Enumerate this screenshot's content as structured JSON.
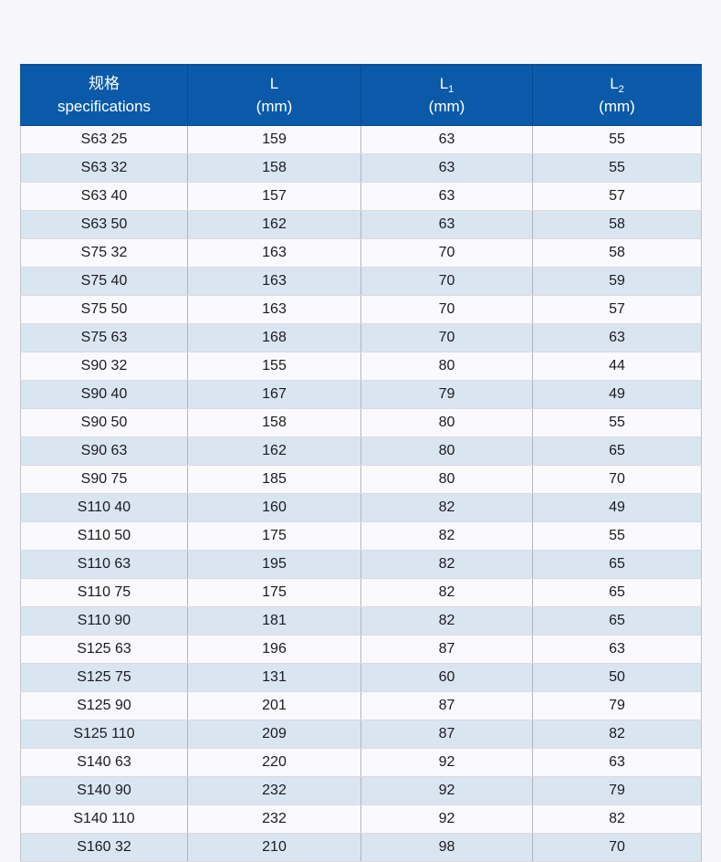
{
  "page": {
    "background_color": "#f7f7fb"
  },
  "table": {
    "header_bg_color": "#0b5aa9",
    "header_text_color": "#ffffff",
    "stripe_color": "#dae5f2",
    "row_color": "#fafafd",
    "columns": [
      {
        "line1": "规格",
        "sub": "",
        "line2": "specifications"
      },
      {
        "line1": "L",
        "sub": "",
        "line2": "(mm)"
      },
      {
        "line1": "L",
        "sub": "1",
        "line2": "(mm)"
      },
      {
        "line1": "L",
        "sub": "2",
        "line2": "(mm)"
      }
    ],
    "col_names": [
      "spec-cell",
      "l-value-cell",
      "l1-value-cell",
      "l2-value-cell"
    ],
    "rows": [
      [
        "S63 25",
        "159",
        "63",
        "55"
      ],
      [
        "S63 32",
        "158",
        "63",
        "55"
      ],
      [
        "S63 40",
        "157",
        "63",
        "57"
      ],
      [
        "S63 50",
        "162",
        "63",
        "58"
      ],
      [
        "S75 32",
        "163",
        "70",
        "58"
      ],
      [
        "S75 40",
        "163",
        "70",
        "59"
      ],
      [
        "S75 50",
        "163",
        "70",
        "57"
      ],
      [
        "S75 63",
        "168",
        "70",
        "63"
      ],
      [
        "S90 32",
        "155",
        "80",
        "44"
      ],
      [
        "S90 40",
        "167",
        "79",
        "49"
      ],
      [
        "S90 50",
        "158",
        "80",
        "55"
      ],
      [
        "S90 63",
        "162",
        "80",
        "65"
      ],
      [
        "S90 75",
        "185",
        "80",
        "70"
      ],
      [
        "S110 40",
        "160",
        "82",
        "49"
      ],
      [
        "S110 50",
        "175",
        "82",
        "55"
      ],
      [
        "S110 63",
        "195",
        "82",
        "65"
      ],
      [
        "S110 75",
        "175",
        "82",
        "65"
      ],
      [
        "S110 90",
        "181",
        "82",
        "65"
      ],
      [
        "S125 63",
        "196",
        "87",
        "63"
      ],
      [
        "S125 75",
        "131",
        "60",
        "50"
      ],
      [
        "S125 90",
        "201",
        "87",
        "79"
      ],
      [
        "S125 110",
        "209",
        "87",
        "82"
      ],
      [
        "S140 63",
        "220",
        "92",
        "63"
      ],
      [
        "S140 90",
        "232",
        "92",
        "79"
      ],
      [
        "S140 110",
        "232",
        "92",
        "82"
      ],
      [
        "S160 32",
        "210",
        "98",
        "70"
      ]
    ]
  }
}
